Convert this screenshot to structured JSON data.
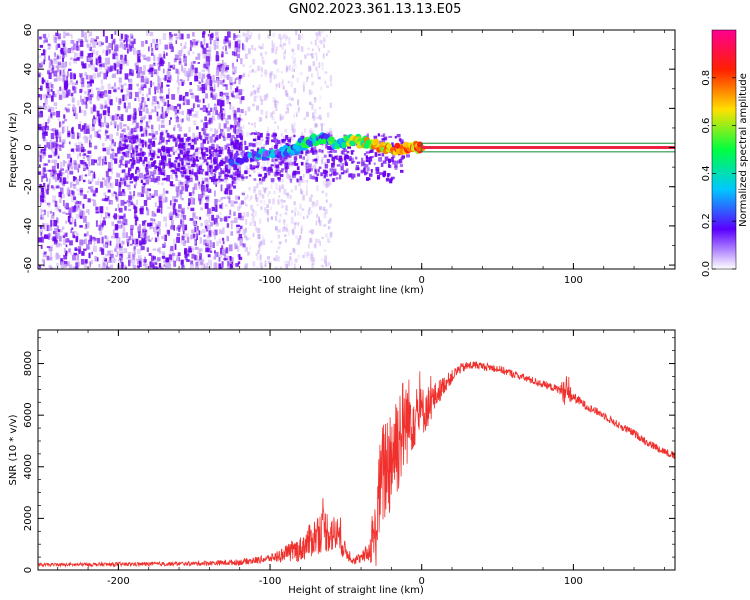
{
  "title": "GN02.2023.361.13.13.E05",
  "colors": {
    "snr_line": "#f0302c",
    "scatter_main": "#6a00ee",
    "scatter_light": "#c8a8f4",
    "center_line": "#ee2244",
    "center_outline": "#118833"
  },
  "chart_data": [
    {
      "type": "heatmap",
      "name": "spectrogram",
      "xlabel": "Height of straight line (km)",
      "ylabel": "Frequency (Hz)",
      "xlim": [
        -253,
        167
      ],
      "ylim": [
        -62,
        60
      ],
      "xticks": [
        -200,
        -100,
        0,
        100
      ],
      "yticks": [
        -60,
        -40,
        -20,
        0,
        20,
        40,
        60
      ],
      "ytick_labels": [
        "-60",
        "-40",
        "-20",
        "0",
        "20",
        "40",
        "60"
      ],
      "colorbar": {
        "label": "Normalized spectral amplitude",
        "range": [
          0.0,
          1.0
        ],
        "ticks": [
          0.0,
          0.2,
          0.4,
          0.6,
          0.8
        ],
        "tick_labels": [
          "0.0",
          "0.2",
          "0.4",
          "0.6",
          "0.8"
        ],
        "colormap": [
          "#ffffff",
          "#5a00ff",
          "#00c8ff",
          "#00ff40",
          "#ffe000",
          "#ff2000",
          "#ff0090"
        ]
      },
      "ridge": {
        "x": [
          -125,
          -110,
          -95,
          -85,
          -75,
          -65,
          -55,
          -45,
          -35,
          -25,
          -15,
          -5,
          0,
          167
        ],
        "freq": [
          -6,
          -4,
          -3,
          -1,
          3,
          5,
          2,
          4,
          2,
          0,
          -1,
          0,
          0,
          0
        ],
        "amplitude": [
          0.3,
          0.4,
          0.45,
          0.5,
          0.55,
          0.5,
          0.6,
          0.7,
          0.8,
          0.85,
          0.9,
          0.95,
          0.9,
          0.9
        ]
      },
      "noise_region_x": [
        -253,
        -118
      ],
      "sparse_region_x": [
        -118,
        -60
      ]
    },
    {
      "type": "line",
      "name": "snr",
      "xlabel": "Height of straight line (km)",
      "ylabel": "SNR (10 * v/v)",
      "xlim": [
        -253,
        167
      ],
      "ylim": [
        0,
        9300
      ],
      "xticks": [
        -200,
        -100,
        0,
        100
      ],
      "yticks": [
        0,
        2000,
        4000,
        6000,
        8000
      ],
      "x": [
        -253,
        -200,
        -150,
        -120,
        -100,
        -80,
        -65,
        -55,
        -50,
        -45,
        -40,
        -35,
        -30,
        -28,
        -25,
        -20,
        -15,
        -10,
        -5,
        0,
        5,
        10,
        15,
        20,
        25,
        30,
        35,
        40,
        50,
        60,
        70,
        80,
        90,
        95,
        100,
        110,
        120,
        130,
        140,
        150,
        160,
        167
      ],
      "y": [
        200,
        220,
        250,
        300,
        450,
        800,
        1600,
        1300,
        700,
        400,
        450,
        700,
        1500,
        3000,
        3800,
        4500,
        5200,
        5800,
        6000,
        6100,
        6400,
        6800,
        7200,
        7500,
        7800,
        7900,
        7950,
        7900,
        7800,
        7600,
        7400,
        7200,
        7000,
        6900,
        6700,
        6300,
        6000,
        5600,
        5300,
        4900,
        4600,
        4400
      ],
      "noise": [
        60,
        80,
        80,
        120,
        150,
        500,
        900,
        700,
        300,
        200,
        200,
        400,
        1400,
        1800,
        2200,
        2400,
        2200,
        1800,
        1300,
        1000,
        800,
        500,
        350,
        250,
        200,
        180,
        160,
        150,
        150,
        150,
        150,
        150,
        150,
        600,
        200,
        150,
        150,
        150,
        150,
        150,
        150,
        150
      ]
    }
  ]
}
